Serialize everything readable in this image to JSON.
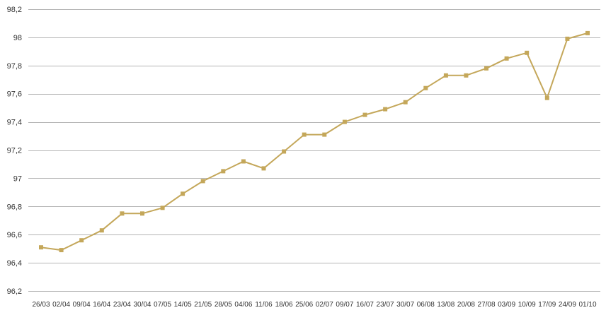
{
  "chart_data": {
    "type": "line",
    "title": "",
    "xlabel": "",
    "ylabel": "",
    "ylim": [
      96.2,
      98.2
    ],
    "yticks": [
      96.2,
      96.4,
      96.6,
      96.8,
      97,
      97.2,
      97.4,
      97.6,
      97.8,
      98,
      98.2
    ],
    "ytick_labels": [
      "96,2",
      "96,4",
      "96,6",
      "96,8",
      "97",
      "97,2",
      "97,4",
      "97,6",
      "97,8",
      "98",
      "98,2"
    ],
    "grid": true,
    "legend": "none",
    "color": "#c4a75a",
    "categories": [
      "26/03",
      "02/04",
      "09/04",
      "16/04",
      "23/04",
      "30/04",
      "07/05",
      "14/05",
      "21/05",
      "28/05",
      "04/06",
      "11/06",
      "18/06",
      "25/06",
      "02/07",
      "09/07",
      "16/07",
      "23/07",
      "30/07",
      "06/08",
      "13/08",
      "20/08",
      "27/08",
      "03/09",
      "10/09",
      "17/09",
      "24/09",
      "01/10"
    ],
    "series": [
      {
        "values": [
          96.51,
          96.49,
          96.56,
          96.63,
          96.75,
          96.75,
          96.79,
          96.89,
          96.98,
          97.05,
          97.12,
          97.07,
          97.19,
          97.31,
          97.31,
          97.4,
          97.45,
          97.49,
          97.54,
          97.64,
          97.73,
          97.73,
          97.78,
          97.85,
          97.89,
          97.57,
          97.99,
          98.03
        ]
      }
    ]
  }
}
